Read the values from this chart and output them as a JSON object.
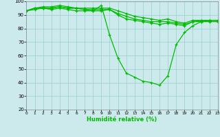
{
  "xlabel": "Humidité relative (%)",
  "xlim": [
    0,
    23
  ],
  "ylim": [
    20,
    100
  ],
  "yticks": [
    20,
    30,
    40,
    50,
    60,
    70,
    80,
    90,
    100
  ],
  "xticks": [
    0,
    1,
    2,
    3,
    4,
    5,
    6,
    7,
    8,
    9,
    10,
    11,
    12,
    13,
    14,
    15,
    16,
    17,
    18,
    19,
    20,
    21,
    22,
    23
  ],
  "line_color": "#00bb00",
  "bg_color": "#cceaec",
  "grid_color": "#99cccc",
  "series": [
    [
      93,
      95,
      95,
      94,
      95,
      94,
      93,
      93,
      93,
      97,
      75,
      58,
      47,
      44,
      41,
      40,
      38,
      45,
      68,
      77,
      82,
      85,
      86,
      86
    ],
    [
      93,
      95,
      96,
      96,
      97,
      96,
      95,
      94,
      93,
      93,
      94,
      90,
      87,
      86,
      85,
      84,
      83,
      84,
      83,
      82,
      85,
      85,
      85,
      85
    ],
    [
      93,
      94,
      95,
      95,
      96,
      95,
      95,
      94,
      94,
      94,
      94,
      91,
      89,
      87,
      86,
      85,
      85,
      85,
      84,
      83,
      85,
      86,
      86,
      86
    ],
    [
      93,
      95,
      95,
      95,
      96,
      95,
      95,
      95,
      95,
      95,
      95,
      93,
      91,
      89,
      88,
      87,
      86,
      87,
      85,
      84,
      86,
      86,
      86,
      86
    ]
  ]
}
